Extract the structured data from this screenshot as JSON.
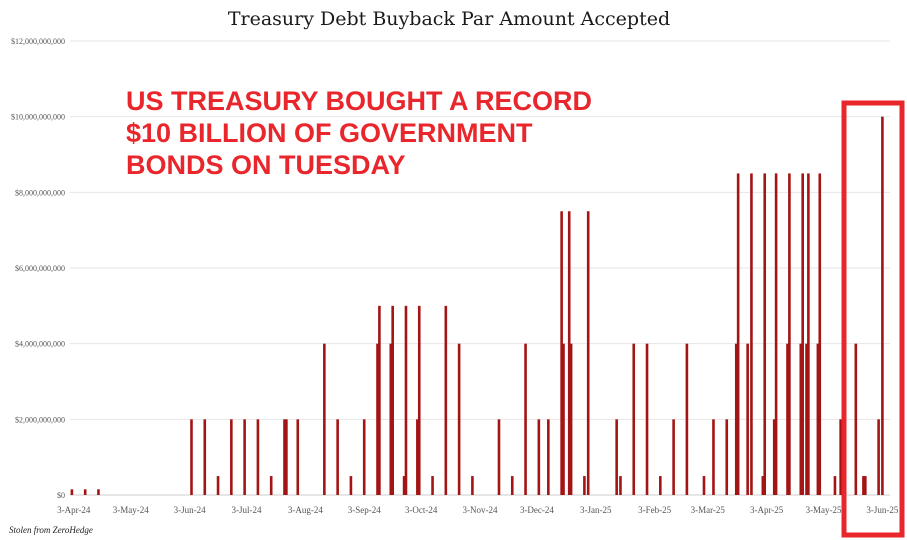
{
  "chart_data": {
    "type": "bar",
    "title": "Treasury Debt Buyback Par Amount Accepted",
    "ylim": [
      0,
      12000000000
    ],
    "yticks": [
      0,
      2000000000,
      4000000000,
      6000000000,
      8000000000,
      10000000000,
      12000000000
    ],
    "ytick_labels": [
      "$0",
      "$2,000,000,000",
      "$4,000,000,000",
      "$6,000,000,000",
      "$8,000,000,000",
      "$10,000,000,000",
      "$12,000,000,000"
    ],
    "xlim": [
      "2024-04-01",
      "2025-06-07"
    ],
    "xticks": [
      "2024-04-03",
      "2024-05-03",
      "2024-06-03",
      "2024-07-03",
      "2024-08-03",
      "2024-09-03",
      "2024-10-03",
      "2024-11-03",
      "2024-12-03",
      "2025-01-03",
      "2025-02-03",
      "2025-03-03",
      "2025-04-03",
      "2025-05-03",
      "2025-06-03"
    ],
    "xtick_labels": [
      "3-Apr-24",
      "3-May-24",
      "3-Jun-24",
      "3-Jul-24",
      "3-Aug-24",
      "3-Sep-24",
      "3-Oct-24",
      "3-Nov-24",
      "3-Dec-24",
      "3-Jan-25",
      "3-Feb-25",
      "3-Mar-25",
      "3-Apr-25",
      "3-May-25",
      "3-Jun-25"
    ],
    "grid": true,
    "color": "#a31515",
    "points": [
      [
        "2024-04-02",
        150000000
      ],
      [
        "2024-04-09",
        150000000
      ],
      [
        "2024-04-16",
        150000000
      ],
      [
        "2024-06-04",
        2000000000
      ],
      [
        "2024-06-11",
        2000000000
      ],
      [
        "2024-06-18",
        500000000
      ],
      [
        "2024-06-25",
        2000000000
      ],
      [
        "2024-07-02",
        2000000000
      ],
      [
        "2024-07-09",
        2000000000
      ],
      [
        "2024-07-16",
        500000000
      ],
      [
        "2024-07-23",
        2000000000
      ],
      [
        "2024-07-24",
        2000000000
      ],
      [
        "2024-07-30",
        2000000000
      ],
      [
        "2024-08-13",
        4000000000
      ],
      [
        "2024-08-20",
        2000000000
      ],
      [
        "2024-08-27",
        500000000
      ],
      [
        "2024-09-03",
        2000000000
      ],
      [
        "2024-09-10",
        4000000000
      ],
      [
        "2024-09-11",
        5000000000
      ],
      [
        "2024-09-17",
        4000000000
      ],
      [
        "2024-09-18",
        5000000000
      ],
      [
        "2024-09-24",
        500000000
      ],
      [
        "2024-09-25",
        5000000000
      ],
      [
        "2024-10-01",
        2000000000
      ],
      [
        "2024-10-02",
        5000000000
      ],
      [
        "2024-10-09",
        500000000
      ],
      [
        "2024-10-16",
        5000000000
      ],
      [
        "2024-10-23",
        4000000000
      ],
      [
        "2024-10-30",
        500000000
      ],
      [
        "2024-11-13",
        2000000000
      ],
      [
        "2024-11-20",
        500000000
      ],
      [
        "2024-11-27",
        4000000000
      ],
      [
        "2024-12-04",
        2000000000
      ],
      [
        "2024-12-09",
        2000000000
      ],
      [
        "2024-12-16",
        7500000000
      ],
      [
        "2024-12-17",
        4000000000
      ],
      [
        "2024-12-20",
        7500000000
      ],
      [
        "2024-12-21",
        4000000000
      ],
      [
        "2024-12-28",
        500000000
      ],
      [
        "2024-12-30",
        7500000000
      ],
      [
        "2025-01-14",
        2000000000
      ],
      [
        "2025-01-16",
        500000000
      ],
      [
        "2025-01-23",
        4000000000
      ],
      [
        "2025-01-30",
        4000000000
      ],
      [
        "2025-02-06",
        500000000
      ],
      [
        "2025-02-13",
        2000000000
      ],
      [
        "2025-02-20",
        4000000000
      ],
      [
        "2025-03-01",
        500000000
      ],
      [
        "2025-03-06",
        2000000000
      ],
      [
        "2025-03-13",
        2000000000
      ],
      [
        "2025-03-18",
        4000000000
      ],
      [
        "2025-03-19",
        8500000000
      ],
      [
        "2025-03-24",
        4000000000
      ],
      [
        "2025-03-26",
        8500000000
      ],
      [
        "2025-04-01",
        500000000
      ],
      [
        "2025-04-02",
        8500000000
      ],
      [
        "2025-04-07",
        2000000000
      ],
      [
        "2025-04-08",
        8500000000
      ],
      [
        "2025-04-14",
        4000000000
      ],
      [
        "2025-04-15",
        8500000000
      ],
      [
        "2025-04-21",
        4000000000
      ],
      [
        "2025-04-22",
        8500000000
      ],
      [
        "2025-04-24",
        4000000000
      ],
      [
        "2025-04-25",
        8500000000
      ],
      [
        "2025-04-30",
        4000000000
      ],
      [
        "2025-05-01",
        8500000000
      ],
      [
        "2025-05-09",
        500000000
      ],
      [
        "2025-05-12",
        2000000000
      ],
      [
        "2025-05-20",
        4000000000
      ],
      [
        "2025-05-24",
        500000000
      ],
      [
        "2025-05-25",
        500000000
      ],
      [
        "2025-06-01",
        2000000000
      ],
      [
        "2025-06-03",
        10000000000
      ]
    ]
  },
  "annotation": {
    "lines": [
      "US TREASURY BOUGHT A RECORD",
      "$10 BILLION OF GOVERNMENT",
      "BONDS ON TUESDAY"
    ],
    "color": "#e8262b"
  },
  "credit": "Stolen from ZeroHedge"
}
